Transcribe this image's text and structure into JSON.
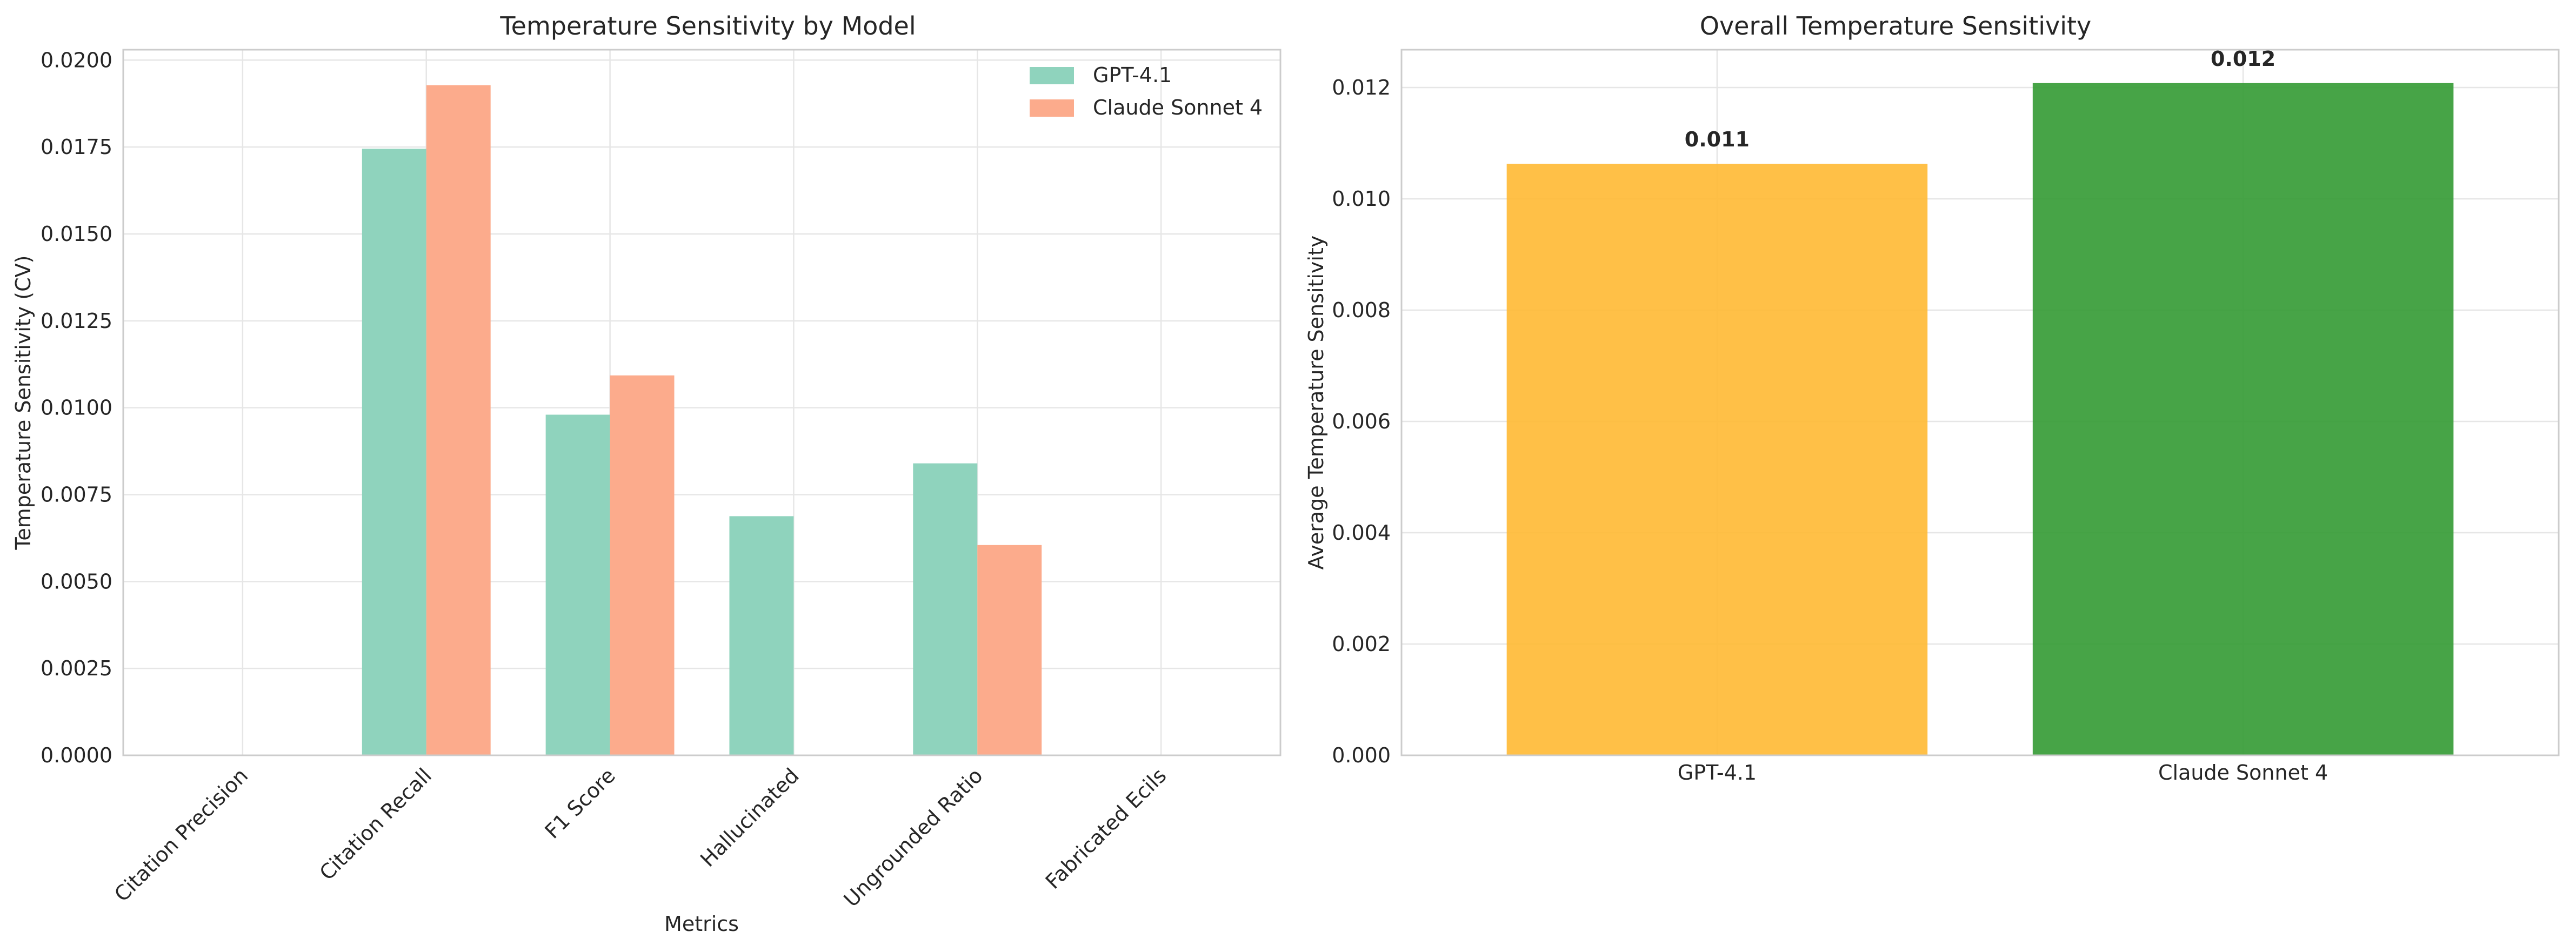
{
  "chart_data": [
    {
      "type": "bar",
      "title": "Temperature Sensitivity by Model",
      "xlabel": "Metrics",
      "ylabel": "Temperature Sensitivity (CV)",
      "categories": [
        "Citation Precision",
        "Citation Recall",
        "F1 Score",
        "Hallucinated",
        "Ungrounded Ratio",
        "Fabricated Ecils"
      ],
      "series": [
        {
          "name": "GPT-4.1",
          "color": "#8fd3bd",
          "values": [
            0,
            0.01745,
            0.0098,
            0.00688,
            0.0084,
            0
          ]
        },
        {
          "name": "Claude Sonnet 4",
          "color": "#fcab8c",
          "values": [
            0,
            0.01928,
            0.01093,
            0,
            0.00605,
            0
          ]
        }
      ],
      "ylim": [
        0,
        0.0203
      ],
      "yticks": [
        "0.0000",
        "0.0025",
        "0.0050",
        "0.0075",
        "0.0100",
        "0.0125",
        "0.0150",
        "0.0175",
        "0.0200"
      ],
      "grid": true,
      "legend": "top-right"
    },
    {
      "type": "bar",
      "title": "Overall Temperature Sensitivity",
      "xlabel": "",
      "ylabel": "Average Temperature Sensitivity",
      "categories": [
        "GPT-4.1",
        "Claude Sonnet 4"
      ],
      "values": [
        0.01063,
        0.01208
      ],
      "value_labels": [
        "0.011",
        "0.012"
      ],
      "colors": [
        "#ffb933",
        "#339a33"
      ],
      "ylim": [
        0,
        0.01268
      ],
      "yticks": [
        "0.000",
        "0.002",
        "0.004",
        "0.006",
        "0.008",
        "0.010",
        "0.012"
      ],
      "grid": true
    }
  ]
}
